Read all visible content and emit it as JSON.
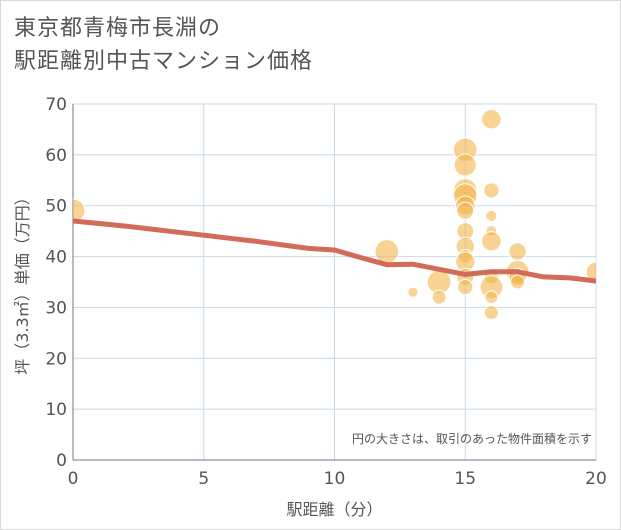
{
  "title_line1": "東京都青梅市長淵の",
  "title_line2": "駅距離別中古マンション価格",
  "chart_data": {
    "type": "scatter",
    "title": "東京都青梅市長淵の駅距離別中古マンション価格",
    "xlabel": "駅距離（分）",
    "ylabel": "坪（3.3㎡）単価（万円）",
    "xlim": [
      0,
      20
    ],
    "ylim": [
      0,
      70
    ],
    "xticks": [
      "0",
      "5",
      "10",
      "15",
      "20"
    ],
    "yticks": [
      "0",
      "10",
      "20",
      "30",
      "40",
      "50",
      "60",
      "70"
    ],
    "grid": true,
    "annotation": "円の大きさは、取引のあった物件面積を示す",
    "bubbles": [
      {
        "x": 0,
        "y": 49,
        "size": 3
      },
      {
        "x": 12,
        "y": 41,
        "size": 3
      },
      {
        "x": 13,
        "y": 33,
        "size": 0.5
      },
      {
        "x": 14,
        "y": 35,
        "size": 3
      },
      {
        "x": 14,
        "y": 32,
        "size": 1
      },
      {
        "x": 15,
        "y": 61,
        "size": 3
      },
      {
        "x": 15,
        "y": 58,
        "size": 2.6
      },
      {
        "x": 15,
        "y": 53,
        "size": 3
      },
      {
        "x": 15,
        "y": 52,
        "size": 3
      },
      {
        "x": 15,
        "y": 50,
        "size": 2
      },
      {
        "x": 15,
        "y": 49,
        "size": 1.5
      },
      {
        "x": 15,
        "y": 45,
        "size": 1.5
      },
      {
        "x": 15,
        "y": 42,
        "size": 1.8
      },
      {
        "x": 15,
        "y": 40,
        "size": 1
      },
      {
        "x": 15,
        "y": 39,
        "size": 2
      },
      {
        "x": 15,
        "y": 36,
        "size": 1.5
      },
      {
        "x": 15,
        "y": 34,
        "size": 1.2
      },
      {
        "x": 16,
        "y": 67,
        "size": 2
      },
      {
        "x": 16,
        "y": 53,
        "size": 1.2
      },
      {
        "x": 16,
        "y": 48,
        "size": 0.6
      },
      {
        "x": 16,
        "y": 45,
        "size": 0.6
      },
      {
        "x": 16,
        "y": 43,
        "size": 2
      },
      {
        "x": 16,
        "y": 36,
        "size": 1
      },
      {
        "x": 16,
        "y": 34,
        "size": 2.8
      },
      {
        "x": 16,
        "y": 32,
        "size": 0.8
      },
      {
        "x": 16,
        "y": 29,
        "size": 1
      },
      {
        "x": 17,
        "y": 41,
        "size": 1.6
      },
      {
        "x": 17,
        "y": 37,
        "size": 2.8
      },
      {
        "x": 17,
        "y": 36,
        "size": 1.5
      },
      {
        "x": 17,
        "y": 35,
        "size": 1
      },
      {
        "x": 20,
        "y": 37,
        "size": 2
      }
    ],
    "trend_line": {
      "x": [
        0,
        1,
        2,
        3,
        4,
        5,
        6,
        7,
        8,
        9,
        10,
        11,
        12,
        13,
        14,
        15,
        16,
        17,
        18,
        19,
        20
      ],
      "y": [
        47,
        46.5,
        46,
        45.4,
        44.8,
        44.2,
        43.6,
        43,
        42.3,
        41.6,
        41.3,
        39.8,
        38.4,
        38.5,
        37.5,
        36.5,
        37,
        37,
        36,
        35.8,
        35.2
      ]
    },
    "colors": {
      "bubble": "#f3b64d",
      "bubble_stroke": "#ffffff",
      "trend": "#d26b5a",
      "grid": "#c8d8ea",
      "axis_text": "#555555",
      "title": "#555555"
    }
  }
}
